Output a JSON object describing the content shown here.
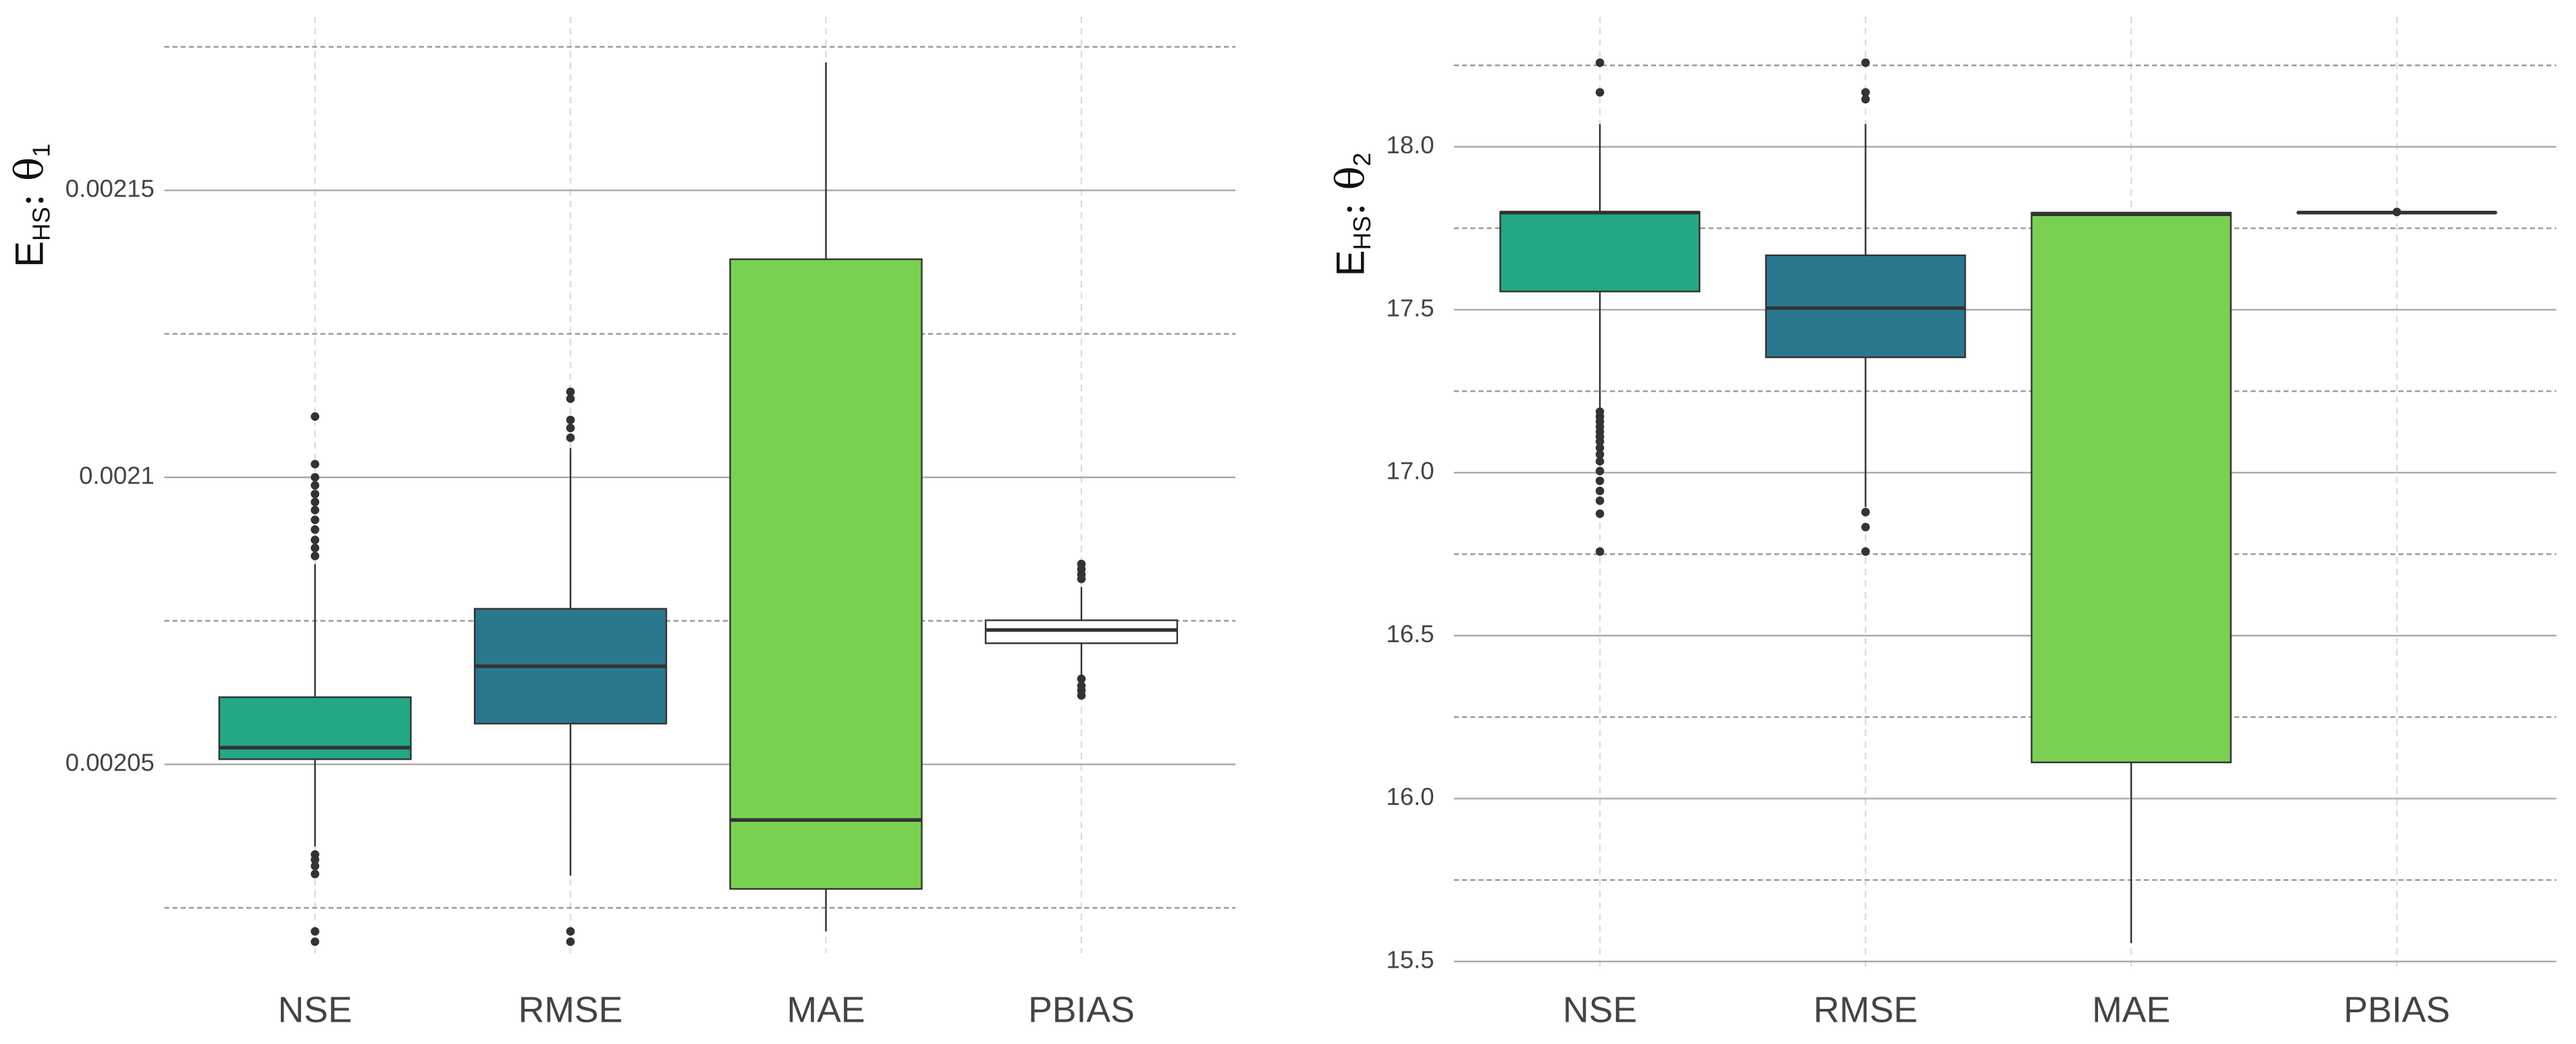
{
  "chart_data": [
    {
      "type": "box",
      "ylabel": {
        "base": "E",
        "subscript": "HS",
        "symbol": ": θ",
        "symbol_subscript": "1"
      },
      "categories": [
        "NSE",
        "RMSE",
        "MAE",
        "PBIAS"
      ],
      "ylim": [
        0.0020171,
        0.0021803
      ],
      "yticks": [
        0.00205,
        0.0021,
        0.00215
      ],
      "minor_yticks": [
        0.002025,
        0.002075,
        0.002125,
        0.002175
      ],
      "grid": true,
      "boxes": [
        {
          "color": "#22a884",
          "min": 0.0020357,
          "q1": 0.0020509,
          "median": 0.0020529,
          "q3": 0.0020617,
          "max": 0.0020849,
          "outliers": [
            0.0020343,
            0.0020334,
            0.0020323,
            0.0020309,
            0.0020209,
            0.0020191,
            0.0020863,
            0.0020877,
            0.0020891,
            0.0020909,
            0.0020926,
            0.0020943,
            0.0020957,
            0.0020971,
            0.0020986,
            0.0021,
            0.0021023,
            0.0021106
          ]
        },
        {
          "color": "#2a788e",
          "min": 0.0020306,
          "q1": 0.0020571,
          "median": 0.0020671,
          "q3": 0.0020771,
          "max": 0.0021051,
          "outliers": [
            0.0020209,
            0.0020191,
            0.0021149,
            0.0021137,
            0.00211,
            0.0021086,
            0.0021069
          ]
        },
        {
          "color": "#7ad151",
          "min": 0.0020209,
          "q1": 0.0020283,
          "median": 0.0020403,
          "q3": 0.002138,
          "max": 0.0021723,
          "outliers": []
        },
        {
          "color": "#ffffff",
          "min": 0.0020654,
          "q1": 0.0020711,
          "median": 0.0020734,
          "q3": 0.0020751,
          "max": 0.0020809,
          "outliers": [
            0.0020849,
            0.002084,
            0.0020831,
            0.0020823,
            0.0020649,
            0.0020637,
            0.0020629,
            0.002062
          ]
        }
      ]
    },
    {
      "type": "box",
      "ylabel": {
        "base": "E",
        "subscript": "HS",
        "symbol": ": θ",
        "symbol_subscript": "2"
      },
      "categories": [
        "NSE",
        "RMSE",
        "MAE",
        "PBIAS"
      ],
      "ylim": [
        15.47,
        18.4
      ],
      "yticks": [
        15.5,
        {
          "value": 16,
          "label": "16.0"
        },
        16.5,
        {
          "value": 17,
          "label": "17.0"
        },
        17.5,
        {
          "value": 18,
          "label": "18.0"
        }
      ],
      "minor_yticks": [
        15.75,
        16.25,
        16.75,
        17.25,
        17.75,
        18.25
      ],
      "grid": true,
      "boxes": [
        {
          "color": "#22a884",
          "min": 17.197,
          "q1": 17.556,
          "median": 17.798,
          "q3": 17.8,
          "max": 18.07,
          "outliers": [
            17.187,
            17.172,
            17.157,
            17.141,
            17.126,
            17.111,
            17.096,
            17.076,
            17.056,
            17.035,
            17.005,
            16.975,
            16.944,
            16.914,
            16.874,
            16.758,
            18.167,
            18.258
          ]
        },
        {
          "color": "#2a788e",
          "min": 16.894,
          "q1": 17.354,
          "median": 17.505,
          "q3": 17.667,
          "max": 18.07,
          "outliers": [
            16.879,
            16.833,
            16.758,
            18.258,
            18.167,
            18.146
          ]
        },
        {
          "color": "#7ad151",
          "min": 15.556,
          "q1": 16.111,
          "median": 17.793,
          "q3": 17.798,
          "max": 17.8,
          "outliers": []
        },
        {
          "color": "#ffffff",
          "min": 17.798,
          "q1": 17.798,
          "median": 17.798,
          "q3": 17.798,
          "max": 17.798,
          "outliers": [
            17.8
          ]
        }
      ]
    }
  ]
}
